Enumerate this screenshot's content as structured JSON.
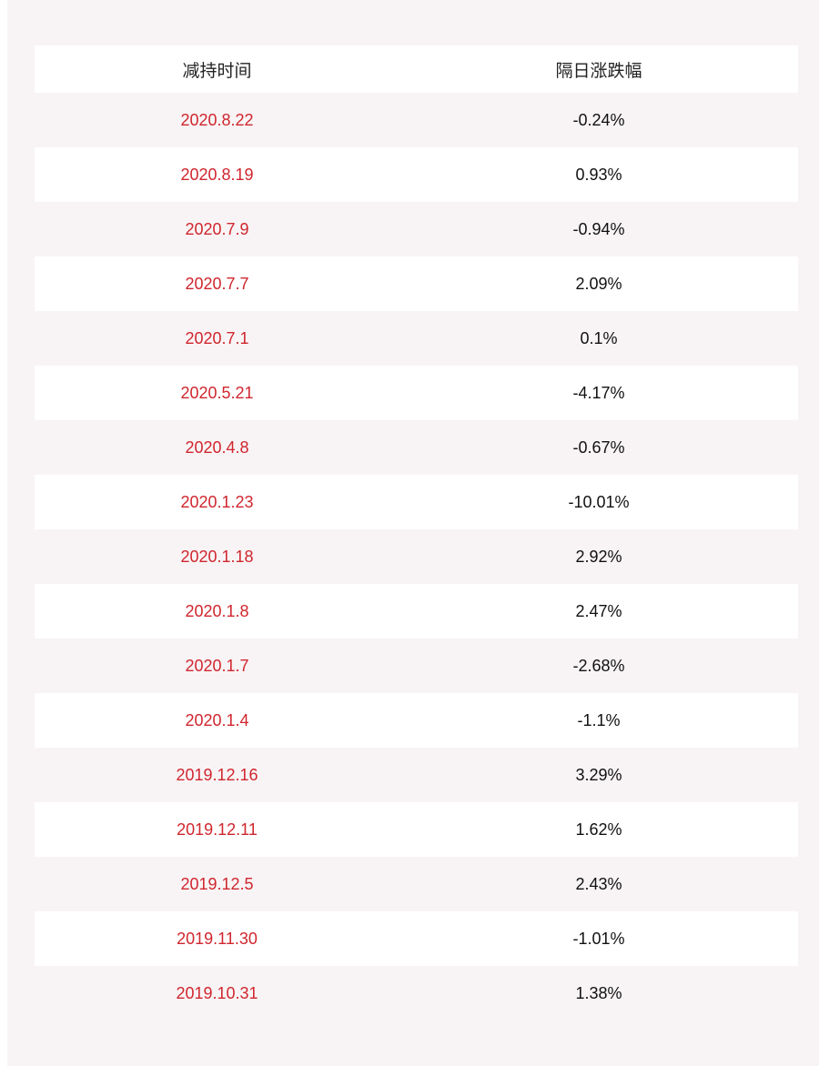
{
  "table": {
    "headers": [
      "减持时间",
      "隔日涨跌幅"
    ],
    "rows": [
      {
        "date": "2020.8.22",
        "change": "-0.24%"
      },
      {
        "date": "2020.8.19",
        "change": "0.93%"
      },
      {
        "date": "2020.7.9",
        "change": "-0.94%"
      },
      {
        "date": "2020.7.7",
        "change": "2.09%"
      },
      {
        "date": "2020.7.1",
        "change": "0.1%"
      },
      {
        "date": "2020.5.21",
        "change": "-4.17%"
      },
      {
        "date": "2020.4.8",
        "change": "-0.67%"
      },
      {
        "date": "2020.1.23",
        "change": "-10.01%"
      },
      {
        "date": "2020.1.18",
        "change": "2.92%"
      },
      {
        "date": "2020.1.8",
        "change": "2.47%"
      },
      {
        "date": "2020.1.7",
        "change": "-2.68%"
      },
      {
        "date": "2020.1.4",
        "change": "-1.1%"
      },
      {
        "date": "2019.12.16",
        "change": "3.29%"
      },
      {
        "date": "2019.12.11",
        "change": "1.62%"
      },
      {
        "date": "2019.12.5",
        "change": "2.43%"
      },
      {
        "date": "2019.11.30",
        "change": "-1.01%"
      },
      {
        "date": "2019.10.31",
        "change": "1.38%"
      }
    ]
  },
  "colors": {
    "background": "#f8f4f5",
    "row_alt": "#ffffff",
    "date_text": "#d0262e",
    "value_text": "#111111"
  }
}
